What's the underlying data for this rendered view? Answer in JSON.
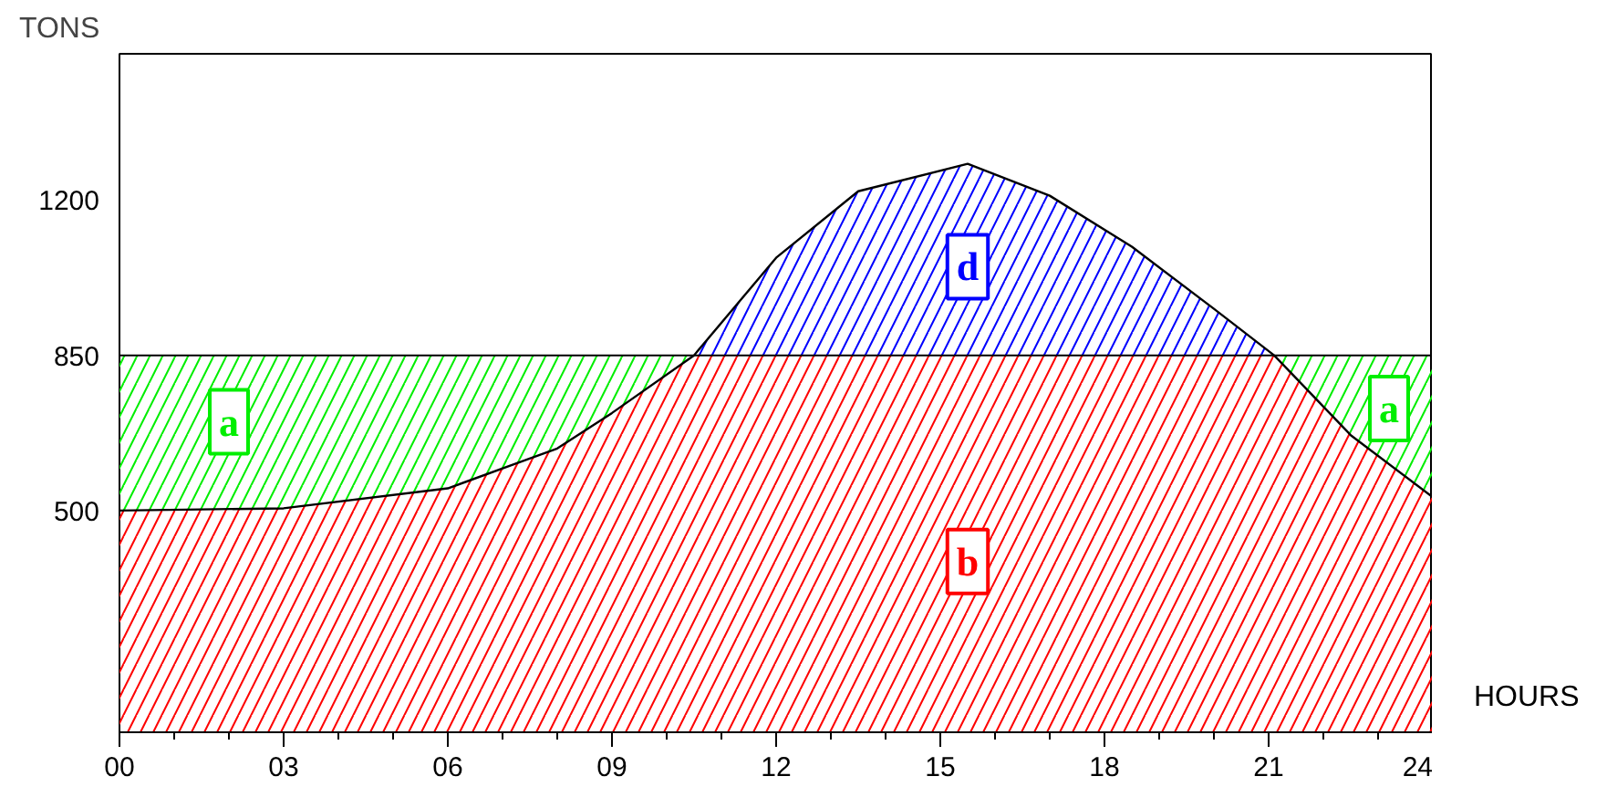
{
  "chart_data": {
    "type": "area",
    "stacked": true,
    "ylabel": "TONS",
    "xlabel": "HOURS",
    "x": [
      0,
      3,
      6,
      8,
      9,
      10.5,
      12,
      13.5,
      15.5,
      17,
      18.5,
      20,
      21.1,
      22.5,
      24
    ],
    "series": [
      {
        "color": "#ff0000",
        "values": [
          500,
          505,
          550,
          640,
          720,
          850,
          850,
          850,
          850,
          850,
          850,
          850,
          850,
          670,
          530
        ]
      },
      {
        "color": "#00ee00",
        "values": [
          350,
          345,
          300,
          210,
          130,
          0,
          0,
          0,
          0,
          0,
          0,
          0,
          0,
          180,
          320
        ]
      },
      {
        "color": "#0000ff",
        "values": [
          0,
          0,
          0,
          0,
          0,
          0,
          220,
          370,
          432,
          360,
          245,
          105,
          0,
          0,
          0
        ]
      },
      {
        "type": "line",
        "color": "#000000",
        "values": [
          500,
          505,
          550,
          640,
          720,
          850,
          1070,
          1220,
          1282,
          1210,
          1095,
          955,
          850,
          670,
          530
        ]
      }
    ],
    "ref_lines": [
      {
        "axis": "y",
        "value": 850,
        "color": "#000000"
      }
    ],
    "annotations": [
      {
        "text": "a",
        "x": 2,
        "y": 700
      },
      {
        "text": "a",
        "x": 23.2,
        "y": 730
      },
      {
        "text": "d",
        "x": 15.5,
        "y": 1050
      },
      {
        "text": "b",
        "x": 15.5,
        "y": 385
      }
    ],
    "xlim": [
      0,
      24
    ],
    "ylim": [
      0,
      1530
    ],
    "xticks": [
      {
        "value": 0,
        "label": "00"
      },
      {
        "value": 1,
        "label": null
      },
      {
        "value": 2,
        "label": null
      },
      {
        "value": 3,
        "label": "03"
      },
      {
        "value": 4,
        "label": null
      },
      {
        "value": 5,
        "label": null
      },
      {
        "value": 6,
        "label": "06"
      },
      {
        "value": 7,
        "label": null
      },
      {
        "value": 8,
        "label": null
      },
      {
        "value": 9,
        "label": "09"
      },
      {
        "value": 10,
        "label": null
      },
      {
        "value": 11,
        "label": null
      },
      {
        "value": 12,
        "label": "12"
      },
      {
        "value": 13,
        "label": null
      },
      {
        "value": 14,
        "label": null
      },
      {
        "value": 15,
        "label": "15"
      },
      {
        "value": 16,
        "label": null
      },
      {
        "value": 17,
        "label": null
      },
      {
        "value": 18,
        "label": "18"
      },
      {
        "value": 19,
        "label": null
      },
      {
        "value": 20,
        "label": null
      },
      {
        "value": 21,
        "label": "21"
      },
      {
        "value": 22,
        "label": null
      },
      {
        "value": 23,
        "label": null
      },
      {
        "value": 24,
        "label": "24"
      }
    ],
    "yticks": [
      500,
      850,
      1200
    ],
    "grid": false
  }
}
